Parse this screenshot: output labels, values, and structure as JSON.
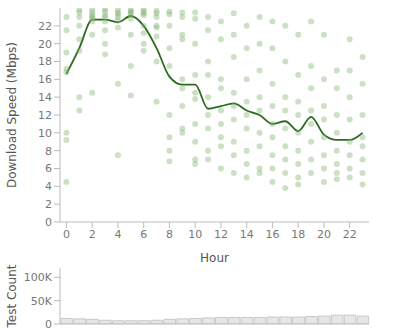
{
  "chart_data": [
    {
      "type": "scatter",
      "x_label": "Hour",
      "y_label": "Download Speed (Mbps)",
      "xlim": [
        -0.5,
        23.5
      ],
      "xticks": [
        0,
        2,
        4,
        6,
        8,
        10,
        12,
        14,
        16,
        18,
        20,
        22
      ],
      "ylim": [
        0,
        24
      ],
      "yticks": [
        0,
        2,
        4,
        6,
        8,
        10,
        12,
        14,
        16,
        18,
        20,
        22
      ],
      "grid": false,
      "series": [
        {
          "type": "scatter",
          "marker": "circle",
          "color": "#7fb26e",
          "x": [
            0,
            0,
            0,
            0,
            0,
            0,
            0,
            0,
            1,
            1,
            1,
            1,
            1,
            1,
            1,
            1,
            2,
            2,
            2,
            2,
            2,
            2,
            2,
            2,
            3,
            3,
            3,
            3,
            3,
            3,
            3,
            3,
            4,
            4,
            4,
            4,
            4,
            4,
            4,
            4,
            5,
            5,
            5,
            5,
            5,
            5,
            5,
            5,
            6,
            6,
            6,
            6,
            6,
            6,
            6,
            6,
            7,
            7,
            7,
            7,
            7,
            7,
            7,
            7,
            8,
            8,
            8,
            8,
            8,
            8,
            8,
            8,
            8,
            9,
            9,
            9,
            9,
            9,
            9,
            9,
            9,
            9,
            10,
            10,
            10,
            10,
            10,
            10,
            10,
            10,
            10,
            10,
            11,
            11,
            11,
            11,
            11,
            11,
            11,
            11,
            11,
            12,
            12,
            12,
            12,
            12,
            12,
            12,
            12,
            12,
            13,
            13,
            13,
            13,
            13,
            13,
            13,
            13,
            13,
            14,
            14,
            14,
            14,
            14,
            14,
            14,
            14,
            14,
            15,
            15,
            15,
            15,
            15,
            15,
            15,
            15,
            15,
            16,
            16,
            16,
            16,
            16,
            16,
            16,
            16,
            16,
            17,
            17,
            17,
            17,
            17,
            17,
            17,
            17,
            17,
            18,
            18,
            18,
            18,
            18,
            18,
            18,
            18,
            18,
            19,
            19,
            19,
            19,
            19,
            19,
            19,
            19,
            20,
            20,
            20,
            20,
            20,
            20,
            20,
            20,
            21,
            21,
            21,
            21,
            21,
            21,
            21,
            21,
            22,
            22,
            22,
            22,
            22,
            22,
            22,
            22,
            23,
            23,
            23,
            23,
            23,
            23,
            23,
            23
          ],
          "values": [
            16.8,
            10.0,
            9.2,
            4.5,
            17.2,
            19.0,
            23.0,
            21.5,
            22.0,
            23.8,
            23.5,
            14.0,
            12.5,
            19.2,
            20.5,
            23.0,
            23.8,
            23.5,
            23.2,
            22.8,
            22.5,
            21.0,
            14.5,
            23.0,
            23.9,
            23.6,
            23.2,
            22.5,
            21.5,
            20.0,
            18.8,
            23.0,
            23.8,
            23.5,
            23.0,
            22.6,
            21.8,
            7.5,
            15.5,
            23.3,
            23.8,
            23.5,
            23.2,
            22.8,
            21.0,
            17.5,
            14.2,
            23.6,
            23.9,
            23.6,
            23.2,
            22.0,
            21.2,
            20.0,
            19.2,
            23.4,
            23.7,
            23.4,
            23.0,
            22.0,
            20.8,
            18.0,
            13.5,
            21.8,
            23.6,
            23.3,
            22.0,
            19.5,
            17.5,
            12.0,
            9.5,
            8.0,
            6.8,
            23.5,
            23.0,
            21.0,
            20.5,
            16.0,
            15.0,
            13.0,
            10.5,
            10.0,
            23.5,
            22.8,
            20.0,
            16.5,
            14.5,
            13.8,
            11.0,
            9.0,
            7.0,
            6.5,
            23.0,
            21.5,
            18.0,
            16.5,
            14.0,
            12.0,
            10.5,
            8.0,
            7.0,
            22.5,
            20.5,
            16.0,
            15.0,
            12.5,
            11.0,
            9.5,
            8.5,
            6.0,
            23.4,
            21.0,
            18.5,
            14.5,
            13.0,
            11.5,
            9.0,
            7.5,
            5.5,
            22.0,
            19.5,
            16.0,
            13.5,
            12.0,
            10.5,
            8.0,
            6.5,
            5.0,
            23.0,
            20.0,
            17.0,
            14.0,
            12.5,
            10.0,
            8.5,
            6.0,
            5.5,
            22.5,
            19.5,
            15.5,
            13.0,
            11.0,
            9.5,
            7.5,
            6.0,
            4.5,
            22.0,
            18.0,
            14.0,
            12.5,
            10.5,
            8.5,
            7.0,
            5.5,
            3.8,
            21.0,
            16.5,
            13.5,
            12.0,
            10.0,
            8.0,
            6.5,
            5.0,
            4.2,
            22.5,
            17.5,
            15.0,
            12.5,
            11.0,
            9.0,
            7.0,
            5.5,
            21.0,
            16.0,
            13.0,
            11.5,
            9.5,
            7.5,
            6.0,
            4.5,
            17.0,
            15.0,
            12.0,
            10.0,
            8.0,
            6.5,
            5.5,
            4.8,
            20.5,
            17.0,
            14.0,
            11.5,
            9.0,
            7.5,
            6.0,
            5.0,
            18.5,
            15.5,
            12.0,
            9.5,
            8.5,
            7.0,
            5.5,
            4.2
          ]
        },
        {
          "type": "line",
          "line_style": "smooth",
          "color": "#2d6a1e",
          "x": [
            0,
            1,
            2,
            3,
            4,
            5,
            6,
            7,
            8,
            9,
            10,
            11,
            12,
            13,
            14,
            15,
            16,
            17,
            18,
            19,
            20,
            21,
            22,
            23
          ],
          "values": [
            16.6,
            19.5,
            22.7,
            22.7,
            22.4,
            23.1,
            22.0,
            19.5,
            16.3,
            15.4,
            15.4,
            12.7,
            13.0,
            13.3,
            12.5,
            12.0,
            11.0,
            11.3,
            10.2,
            11.8,
            9.8,
            9.2,
            9.2,
            10.0
          ]
        }
      ]
    },
    {
      "type": "bar",
      "y_label": "Test Count",
      "color": "#e6e6e6",
      "tick_labels": "y",
      "xlim": [
        -0.5,
        23.5
      ],
      "x": [
        0,
        1,
        2,
        3,
        4,
        5,
        6,
        7,
        8,
        9,
        10,
        11,
        12,
        13,
        14,
        15,
        16,
        17,
        18,
        19,
        20,
        21,
        22,
        23
      ],
      "values": [
        12000,
        11000,
        10000,
        8000,
        7000,
        7000,
        7000,
        8000,
        10000,
        11000,
        12000,
        13000,
        14000,
        14000,
        14000,
        14000,
        15000,
        15000,
        15000,
        16000,
        17000,
        19000,
        19000,
        17000
      ],
      "ylim": [
        0,
        120000
      ],
      "yticks": [
        0,
        {
          "value": 50000,
          "label": "50K"
        },
        {
          "value": 100000,
          "label": "100K"
        }
      ],
      "grid": false
    }
  ]
}
